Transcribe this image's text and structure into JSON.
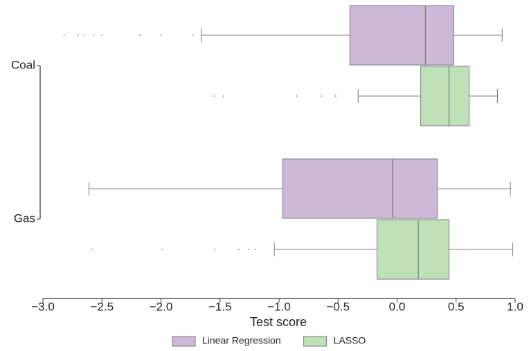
{
  "chart_data": {
    "type": "box",
    "orientation": "horizontal",
    "x_label": "Test score",
    "categories": [
      "Coal",
      "Gas"
    ],
    "xlim": [
      -3.0,
      1.0
    ],
    "xticks": [
      {
        "value": -3.0,
        "label": "−3.0"
      },
      {
        "value": -2.5,
        "label": "−2.5"
      },
      {
        "value": -2.0,
        "label": "−2.0"
      },
      {
        "value": -1.5,
        "label": "−1.5"
      },
      {
        "value": -1.0,
        "label": "−1.0"
      },
      {
        "value": -0.5,
        "label": "−0.5"
      },
      {
        "value": 0.0,
        "label": "0.0"
      },
      {
        "value": 0.5,
        "label": "0.5"
      },
      {
        "value": 1.0,
        "label": "1.0"
      }
    ],
    "series": [
      {
        "name": "Linear Regression",
        "color": "#cdb8d8",
        "min": [
          -1.66,
          -2.61
        ],
        "q1": [
          -0.4,
          -0.97
        ],
        "median": [
          0.24,
          -0.04
        ],
        "q3": [
          0.48,
          0.34
        ],
        "max": [
          0.89,
          0.96
        ],
        "outliers": [
          [
            -2.82,
            -2.7,
            -2.65,
            -2.57,
            -2.5,
            -2.18,
            -2.0,
            -1.73
          ],
          []
        ]
      },
      {
        "name": "LASSO",
        "color": "#bfe1b7",
        "min": [
          -0.33,
          -1.04
        ],
        "q1": [
          0.2,
          -0.17
        ],
        "median": [
          0.44,
          0.18
        ],
        "q3": [
          0.61,
          0.44
        ],
        "max": [
          0.85,
          0.98
        ],
        "outliers": [
          [
            -1.55,
            -1.47,
            -0.85,
            -0.64,
            -0.52
          ],
          [
            -2.58,
            -1.99,
            -1.54,
            -1.34,
            -1.26,
            -1.2
          ]
        ]
      }
    ]
  }
}
